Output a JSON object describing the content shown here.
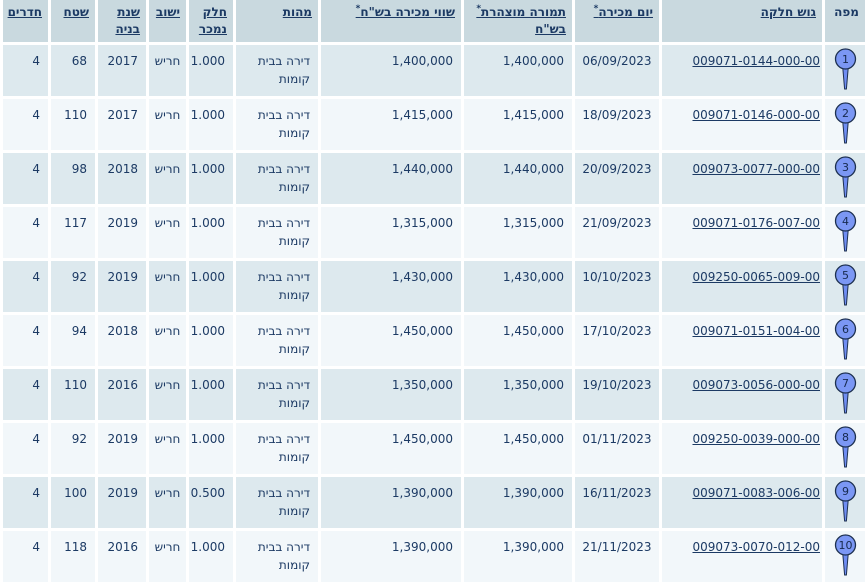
{
  "colors": {
    "header_bg": "#c9d9df",
    "row_odd_bg": "#dde9ee",
    "row_even_bg": "#f2f7fa",
    "text": "#1c3a64",
    "link": "#1c3a64",
    "pin_fill": "#7b97f4",
    "pin_tail_fill": "#6f8df2",
    "pin_stroke": "#1d3050"
  },
  "asterisk_symbol": "*",
  "table": {
    "columns": [
      {
        "key": "pin",
        "label": "מפה",
        "label_lines": [
          "מפה"
        ],
        "asterisk": false,
        "sortable": false
      },
      {
        "key": "gush",
        "label": "גוש חלקה",
        "label_lines": [
          "גוש חלקה"
        ],
        "asterisk": false,
        "sortable": true
      },
      {
        "key": "sale_date",
        "label": "יום מכירה*",
        "label_lines": [
          "יום מכירה"
        ],
        "asterisk": true,
        "sortable": true
      },
      {
        "key": "declared",
        "label": "תמורה מוצהרת בש\"ח*",
        "label_lines": [
          "תמורה מוצהרת",
          "בש\"ח"
        ],
        "asterisk": true,
        "sortable": true
      },
      {
        "key": "value",
        "label": "שווי מכירה בש\"ח*",
        "label_lines": [
          "שווי מכירה בש\"ח"
        ],
        "asterisk": true,
        "sortable": true
      },
      {
        "key": "nature",
        "label": "מהות",
        "label_lines": [
          "מהות"
        ],
        "asterisk": false,
        "sortable": true
      },
      {
        "key": "part_sold",
        "label": "חלק נמכר",
        "label_lines": [
          "חלק",
          "נמכר"
        ],
        "asterisk": false,
        "sortable": true
      },
      {
        "key": "settlement",
        "label": "ישוב",
        "label_lines": [
          "ישוב"
        ],
        "asterisk": false,
        "sortable": true
      },
      {
        "key": "build_year",
        "label": "שנת בניה",
        "label_lines": [
          "שנת",
          "בניה"
        ],
        "asterisk": false,
        "sortable": true
      },
      {
        "key": "area",
        "label": "שטח",
        "label_lines": [
          "שטח"
        ],
        "asterisk": false,
        "sortable": true
      },
      {
        "key": "rooms",
        "label": "חדרים",
        "label_lines": [
          "חדרים"
        ],
        "asterisk": false,
        "sortable": true
      }
    ],
    "rows": [
      {
        "pin": "1",
        "gush": "009071-0144-000-00",
        "sale_date": "06/09/2023",
        "declared": "1,400,000",
        "value": "1,400,000",
        "nature": "דירה בבית קומות",
        "part_sold": "1.000",
        "settlement": "חריש",
        "build_year": "2017",
        "area": "68",
        "rooms": "4"
      },
      {
        "pin": "2",
        "gush": "009071-0146-000-00",
        "sale_date": "18/09/2023",
        "declared": "1,415,000",
        "value": "1,415,000",
        "nature": "דירה בבית קומות",
        "part_sold": "1.000",
        "settlement": "חריש",
        "build_year": "2017",
        "area": "110",
        "rooms": "4"
      },
      {
        "pin": "3",
        "gush": "009073-0077-000-00",
        "sale_date": "20/09/2023",
        "declared": "1,440,000",
        "value": "1,440,000",
        "nature": "דירה בבית קומות",
        "part_sold": "1.000",
        "settlement": "חריש",
        "build_year": "2018",
        "area": "98",
        "rooms": "4"
      },
      {
        "pin": "4",
        "gush": "009071-0176-007-00",
        "sale_date": "21/09/2023",
        "declared": "1,315,000",
        "value": "1,315,000",
        "nature": "דירה בבית קומות",
        "part_sold": "1.000",
        "settlement": "חריש",
        "build_year": "2019",
        "area": "117",
        "rooms": "4"
      },
      {
        "pin": "5",
        "gush": "009250-0065-009-00",
        "sale_date": "10/10/2023",
        "declared": "1,430,000",
        "value": "1,430,000",
        "nature": "דירה בבית קומות",
        "part_sold": "1.000",
        "settlement": "חריש",
        "build_year": "2019",
        "area": "92",
        "rooms": "4"
      },
      {
        "pin": "6",
        "gush": "009071-0151-004-00",
        "sale_date": "17/10/2023",
        "declared": "1,450,000",
        "value": "1,450,000",
        "nature": "דירה בבית קומות",
        "part_sold": "1.000",
        "settlement": "חריש",
        "build_year": "2018",
        "area": "94",
        "rooms": "4"
      },
      {
        "pin": "7",
        "gush": "009073-0056-000-00",
        "sale_date": "19/10/2023",
        "declared": "1,350,000",
        "value": "1,350,000",
        "nature": "דירה בבית קומות",
        "part_sold": "1.000",
        "settlement": "חריש",
        "build_year": "2016",
        "area": "110",
        "rooms": "4"
      },
      {
        "pin": "8",
        "gush": "009250-0039-000-00",
        "sale_date": "01/11/2023",
        "declared": "1,450,000",
        "value": "1,450,000",
        "nature": "דירה בבית קומות",
        "part_sold": "1.000",
        "settlement": "חריש",
        "build_year": "2019",
        "area": "92",
        "rooms": "4"
      },
      {
        "pin": "9",
        "gush": "009071-0083-006-00",
        "sale_date": "16/11/2023",
        "declared": "1,390,000",
        "value": "1,390,000",
        "nature": "דירה בבית קומות",
        "part_sold": "0.500",
        "settlement": "חריש",
        "build_year": "2019",
        "area": "100",
        "rooms": "4"
      },
      {
        "pin": "10",
        "gush": "009073-0070-012-00",
        "sale_date": "21/11/2023",
        "declared": "1,390,000",
        "value": "1,390,000",
        "nature": "דירה בבית קומות",
        "part_sold": "1.000",
        "settlement": "חריש",
        "build_year": "2016",
        "area": "118",
        "rooms": "4"
      }
    ]
  }
}
